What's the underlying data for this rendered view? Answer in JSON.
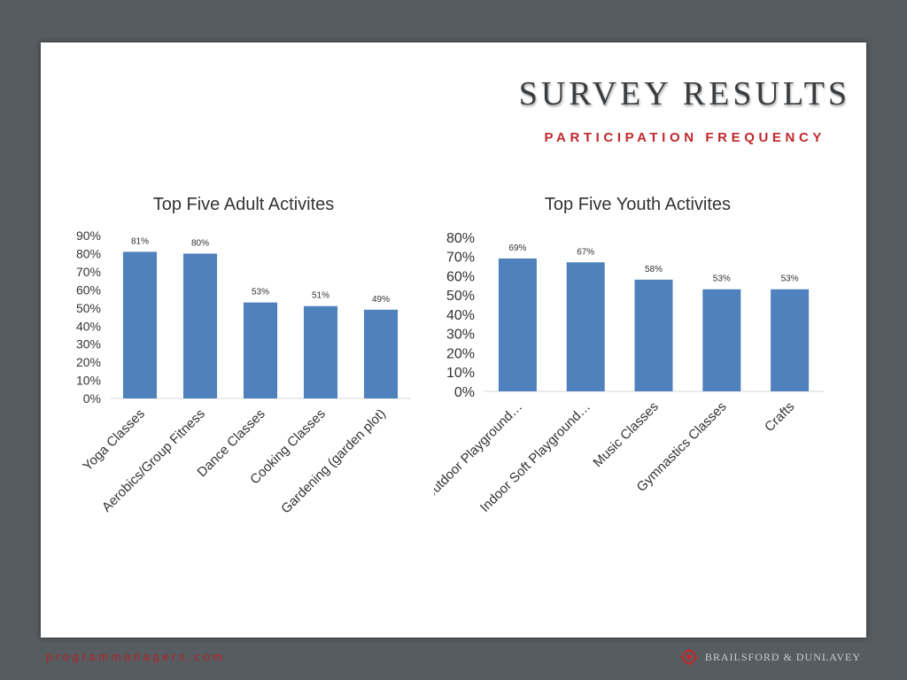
{
  "header": {
    "title": "SURVEY RESULTS",
    "subtitle": "PARTICIPATION FREQUENCY"
  },
  "footer": {
    "url": "programmanagers.com",
    "logo_text": "BRAILSFORD & DUNLAVEY"
  },
  "colors": {
    "bar": "#4f81bd",
    "accent": "#c0282d"
  },
  "chart_data": [
    {
      "type": "bar",
      "title": "Top Five Adult Activites",
      "categories": [
        "Yoga Classes",
        "Aerobics/Group Fitness",
        "Dance Classes",
        "Cooking Classes",
        "Gardening (garden plot)"
      ],
      "values": [
        81,
        80,
        53,
        51,
        49
      ],
      "value_labels": [
        "81%",
        "80%",
        "53%",
        "51%",
        "49%"
      ],
      "ylim": [
        0,
        90
      ],
      "yticks": [
        "0%",
        "10%",
        "20%",
        "30%",
        "40%",
        "50%",
        "60%",
        "70%",
        "80%",
        "90%"
      ],
      "xlabel": "",
      "ylabel": "",
      "grid": false,
      "legend": "none"
    },
    {
      "type": "bar",
      "title": "Top Five Youth Activites",
      "categories": [
        "Outdoor Playground…",
        "Indoor Soft Playground…",
        "Music Classes",
        "Gymnastics Classes",
        "Crafts"
      ],
      "values": [
        69,
        67,
        58,
        53,
        53
      ],
      "value_labels": [
        "69%",
        "67%",
        "58%",
        "53%",
        "53%"
      ],
      "ylim": [
        0,
        80
      ],
      "yticks": [
        "0%",
        "10%",
        "20%",
        "30%",
        "40%",
        "50%",
        "60%",
        "70%",
        "80%"
      ],
      "xlabel": "",
      "ylabel": "",
      "grid": false,
      "legend": "none"
    }
  ]
}
